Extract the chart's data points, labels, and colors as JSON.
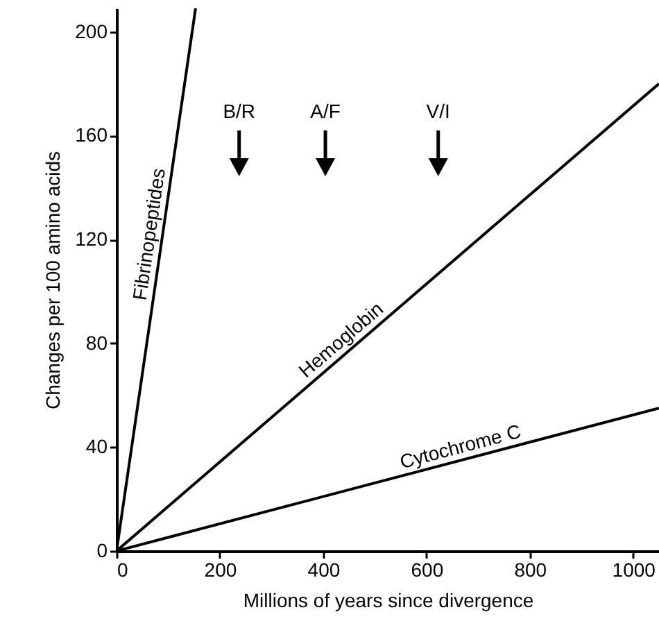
{
  "chart_data": {
    "type": "line",
    "xlabel": "Millions of years since divergence",
    "ylabel": "Changes per 100 amino acids",
    "xlim": [
      0,
      1050
    ],
    "ylim": [
      0,
      209
    ],
    "xticks": [
      0,
      200,
      400,
      600,
      800,
      1000
    ],
    "yticks": [
      0,
      40,
      80,
      120,
      160,
      200
    ],
    "grid": false,
    "marker": "none",
    "line_style": "solid",
    "series": [
      {
        "name": "Fibrinopeptides",
        "color": "#000000",
        "x": [
          0,
          153
        ],
        "values": [
          0,
          209
        ]
      },
      {
        "name": "Hemoglobin",
        "color": "#000000",
        "x": [
          0,
          1050
        ],
        "values": [
          0,
          180
        ]
      },
      {
        "name": "Cytochrome C",
        "color": "#000000",
        "x": [
          0,
          1050
        ],
        "values": [
          0,
          55
        ]
      }
    ],
    "annotations": [
      "B/R",
      "A/F",
      "V/I"
    ]
  }
}
